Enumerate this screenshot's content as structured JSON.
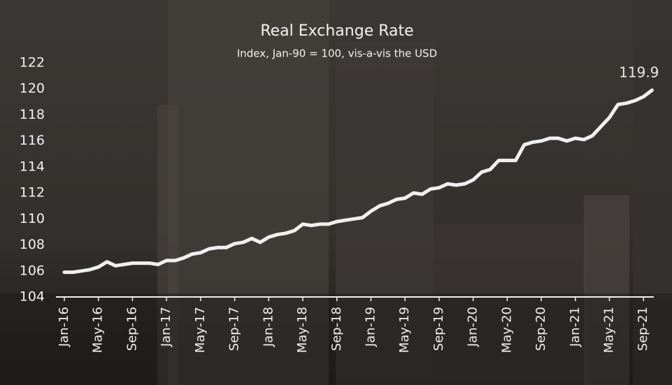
{
  "chart_data": {
    "type": "line",
    "title": "Real Exchange Rate",
    "subtitle": "Index, Jan-90 = 100, vis-a-vis the USD",
    "categories": [
      "Jan-16",
      null,
      null,
      null,
      "May-16",
      null,
      null,
      null,
      "Sep-16",
      null,
      null,
      null,
      "Jan-17",
      null,
      null,
      null,
      "May-17",
      null,
      null,
      null,
      "Sep-17",
      null,
      null,
      null,
      "Jan-18",
      null,
      null,
      null,
      "May-18",
      null,
      null,
      null,
      "Sep-18",
      null,
      null,
      null,
      "Jan-19",
      null,
      null,
      null,
      "May-19",
      null,
      null,
      null,
      "Sep-19",
      null,
      null,
      null,
      "Jan-20",
      null,
      null,
      null,
      "May-20",
      null,
      null,
      null,
      "Sep-20",
      null,
      null,
      null,
      "Jan-21",
      null,
      null,
      null,
      "May-21",
      null,
      null,
      null,
      "Sep-21",
      null
    ],
    "series": [
      {
        "name": "Real Exchange Rate",
        "color": "#f0f0f0",
        "values": [
          105.9,
          105.9,
          106.0,
          106.1,
          106.3,
          106.7,
          106.4,
          106.5,
          106.6,
          106.6,
          106.6,
          106.5,
          106.8,
          106.8,
          107.0,
          107.3,
          107.4,
          107.7,
          107.8,
          107.8,
          108.1,
          108.2,
          108.5,
          108.2,
          108.6,
          108.8,
          108.9,
          109.1,
          109.6,
          109.5,
          109.6,
          109.6,
          109.8,
          109.9,
          110.0,
          110.1,
          110.6,
          111.0,
          111.2,
          111.5,
          111.6,
          112.0,
          111.9,
          112.3,
          112.4,
          112.7,
          112.6,
          112.7,
          113.0,
          113.6,
          113.8,
          114.5,
          114.5,
          114.5,
          115.7,
          115.9,
          116.0,
          116.2,
          116.2,
          116.0,
          116.2,
          116.1,
          116.4,
          117.1,
          117.8,
          118.8,
          118.9,
          119.1,
          119.4,
          119.9
        ]
      }
    ],
    "data_labels": "last",
    "ylim": [
      104,
      122
    ],
    "yticks": [
      104,
      106,
      108,
      110,
      112,
      114,
      116,
      118,
      120,
      122
    ],
    "grid": false
  }
}
